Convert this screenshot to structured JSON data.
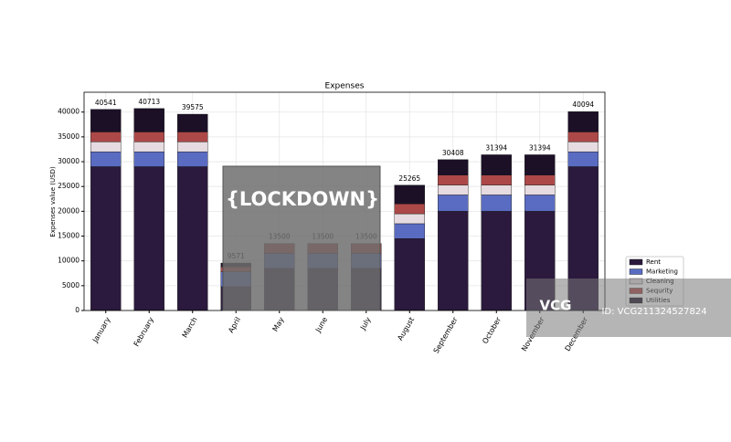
{
  "chart_data": {
    "type": "bar",
    "stacked": true,
    "title": "Expenses",
    "y_label": "Expenses value (USD)",
    "categories": [
      "January",
      "February",
      "March",
      "April",
      "May",
      "June",
      "July",
      "August",
      "September",
      "October",
      "November",
      "December"
    ],
    "series": [
      {
        "name": "Rent",
        "color": "#2b1a3d",
        "values": [
          29000,
          29000,
          29000,
          4800,
          8500,
          8500,
          8500,
          14500,
          20000,
          20000,
          20000,
          29000
        ]
      },
      {
        "name": "Marketing",
        "color": "#5a6cc2",
        "values": [
          3000,
          3000,
          3000,
          3000,
          3000,
          3000,
          3000,
          3000,
          3300,
          3300,
          3300,
          3000
        ]
      },
      {
        "name": "Cleaning",
        "color": "#e6dbe0",
        "values": [
          2000,
          2000,
          2000,
          0,
          0,
          0,
          0,
          2000,
          2000,
          2000,
          2000,
          2000
        ]
      },
      {
        "name": "Sequrity",
        "color": "#ad4848",
        "values": [
          2000,
          2000,
          2000,
          1000,
          2000,
          2000,
          2000,
          2000,
          2000,
          2000,
          2000,
          2000
        ]
      },
      {
        "name": "Utilities",
        "color": "#1c1027",
        "values": [
          4541,
          4713,
          3575,
          771,
          0,
          0,
          0,
          3765,
          3108,
          4094,
          4094,
          4094
        ]
      }
    ],
    "totals": [
      40541,
      40713,
      39575,
      9571,
      13500,
      13500,
      13500,
      25265,
      30408,
      31394,
      31394,
      40094
    ],
    "ylim": [
      0,
      44000
    ],
    "yticks": [
      0,
      5000,
      10000,
      15000,
      20000,
      25000,
      30000,
      35000,
      40000
    ],
    "grid": true,
    "annotation": "{LOCKDOWN}"
  },
  "watermark": {
    "logo": "VCG",
    "id": "ID: VCG211324527824"
  }
}
